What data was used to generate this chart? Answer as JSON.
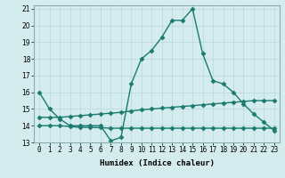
{
  "xlabel": "Humidex (Indice chaleur)",
  "line1_x": [
    0,
    1,
    2,
    3,
    4,
    5,
    6,
    7,
    8,
    9,
    10,
    11,
    12,
    13,
    14,
    15,
    16,
    17,
    18,
    19,
    20,
    21,
    22,
    23
  ],
  "line1_y": [
    16.0,
    15.0,
    14.4,
    14.0,
    14.0,
    14.0,
    14.0,
    13.1,
    13.3,
    16.5,
    18.0,
    18.5,
    19.3,
    20.3,
    20.3,
    21.0,
    18.3,
    16.7,
    16.5,
    16.0,
    15.3,
    14.7,
    14.2,
    13.7
  ],
  "line2_x": [
    0,
    1,
    2,
    3,
    4,
    5,
    6,
    7,
    8,
    9,
    10,
    11,
    12,
    13,
    14,
    15,
    16,
    17,
    18,
    19,
    20,
    21,
    22,
    23
  ],
  "line2_y": [
    14.5,
    14.5,
    14.5,
    14.55,
    14.6,
    14.65,
    14.7,
    14.75,
    14.8,
    14.88,
    14.95,
    15.0,
    15.05,
    15.1,
    15.15,
    15.2,
    15.25,
    15.3,
    15.35,
    15.4,
    15.45,
    15.5,
    15.5,
    15.5
  ],
  "line3_x": [
    0,
    1,
    2,
    3,
    4,
    5,
    6,
    7,
    8,
    9,
    10,
    11,
    12,
    13,
    14,
    15,
    16,
    17,
    18,
    19,
    20,
    21,
    22,
    23
  ],
  "line3_y": [
    14.0,
    14.0,
    14.0,
    13.95,
    13.9,
    13.9,
    13.88,
    13.85,
    13.85,
    13.85,
    13.85,
    13.85,
    13.85,
    13.85,
    13.85,
    13.85,
    13.85,
    13.85,
    13.85,
    13.85,
    13.85,
    13.85,
    13.85,
    13.85
  ],
  "line_color": "#1a7a6e",
  "bg_color": "#d4ecee",
  "grid_color": "#b8d8dc",
  "ylim": [
    13,
    21
  ],
  "xlim": [
    -0.5,
    23.5
  ],
  "yticks": [
    13,
    14,
    15,
    16,
    17,
    18,
    19,
    20,
    21
  ],
  "xticks": [
    0,
    1,
    2,
    3,
    4,
    5,
    6,
    7,
    8,
    9,
    10,
    11,
    12,
    13,
    14,
    15,
    16,
    17,
    18,
    19,
    20,
    21,
    22,
    23
  ],
  "marker": "D",
  "markersize": 2.5,
  "linewidth": 1.0,
  "fontsize_label": 6.5,
  "fontsize_tick": 5.5
}
